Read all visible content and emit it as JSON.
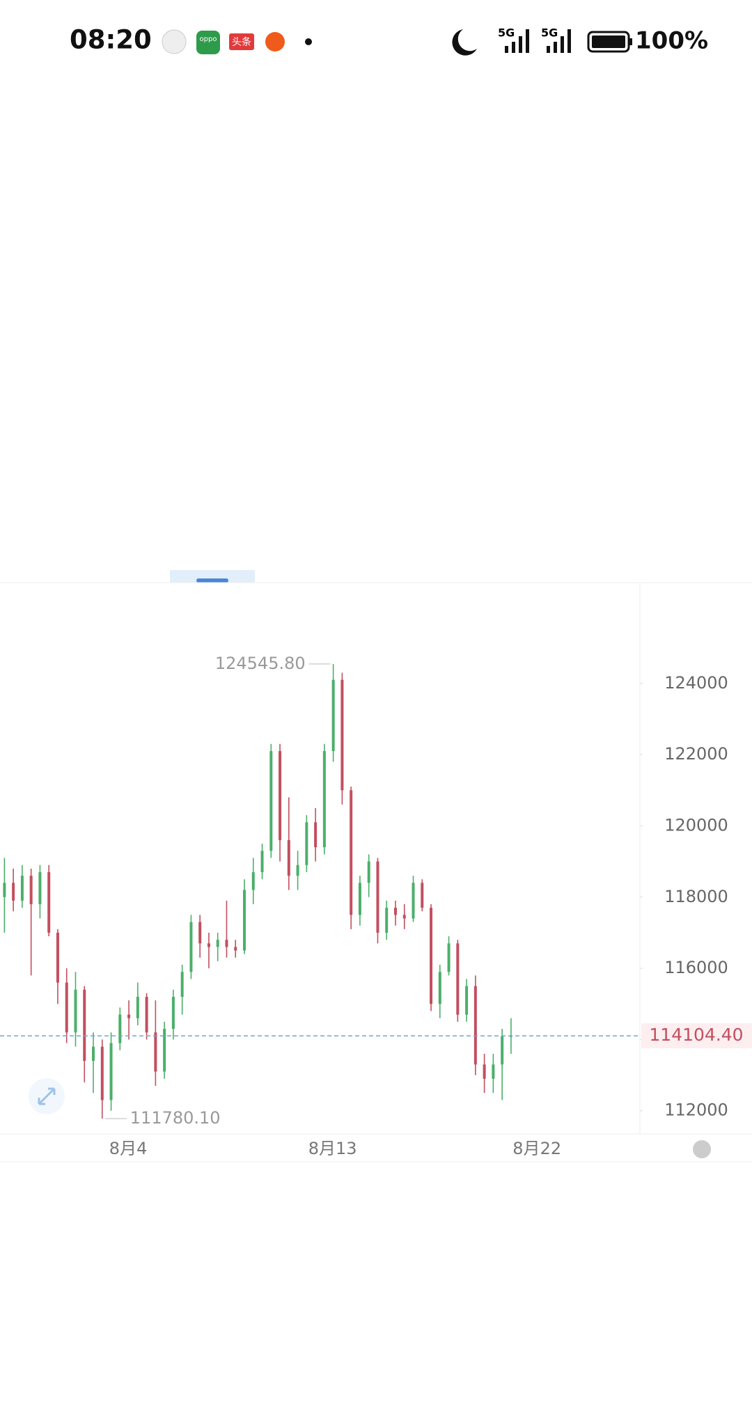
{
  "status_bar": {
    "time": "08:20",
    "icon_labels": [
      "oppo",
      "头条"
    ],
    "network": [
      "5G",
      "5G"
    ],
    "battery": "100%"
  },
  "chart_data": {
    "type": "ohlc",
    "categories": [
      null,
      null,
      null,
      null,
      null,
      null,
      null,
      null,
      null,
      null,
      null,
      null,
      null,
      null,
      "8月4",
      null,
      null,
      null,
      null,
      null,
      null,
      null,
      null,
      null,
      null,
      null,
      null,
      null,
      null,
      null,
      null,
      null,
      null,
      null,
      null,
      null,
      null,
      "8月13",
      null,
      null,
      null,
      null,
      null,
      null,
      null,
      null,
      null,
      null,
      null,
      null,
      null,
      null,
      null,
      null,
      null,
      null,
      null,
      null,
      null,
      null,
      "8月22",
      null,
      null,
      null,
      null,
      null,
      null,
      null,
      null,
      null,
      null,
      null
    ],
    "open": [
      118000,
      118400,
      117900,
      118600,
      117800,
      118700,
      117000,
      115600,
      114200,
      115400,
      113400,
      113800,
      112300,
      113900,
      114700,
      114600,
      115200,
      114200,
      113100,
      114300,
      115200,
      115900,
      117300,
      116700,
      116600,
      116800,
      116600,
      116500,
      118200,
      118700,
      119300,
      122100,
      119600,
      118600,
      118900,
      120100,
      119400,
      122100,
      124100,
      121000,
      117500,
      118400,
      119000,
      117000,
      117700,
      117500,
      117400,
      118400,
      117700,
      115000,
      115900,
      116700,
      114700,
      115500,
      113300,
      112900,
      113300,
      114100,
      null,
      null,
      null,
      null,
      null,
      null,
      null,
      null,
      null,
      null,
      null,
      null,
      null,
      null
    ],
    "high": [
      119100,
      118800,
      118900,
      118800,
      118900,
      118900,
      117100,
      116000,
      115900,
      115500,
      114200,
      114000,
      114200,
      114900,
      115100,
      115600,
      115300,
      115100,
      114500,
      115400,
      116100,
      117500,
      117500,
      117000,
      117000,
      117900,
      116800,
      118500,
      119100,
      119500,
      122300,
      122300,
      120800,
      119300,
      120300,
      120500,
      122300,
      124545.8,
      124300,
      121100,
      118600,
      119200,
      119100,
      117900,
      117900,
      117800,
      118600,
      118500,
      117800,
      116100,
      116900,
      116800,
      115700,
      115800,
      113600,
      113600,
      114300,
      114600,
      null,
      null,
      null,
      null,
      null,
      null,
      null,
      null,
      null,
      null,
      null,
      null,
      null,
      null
    ],
    "low": [
      117000,
      117600,
      117700,
      115800,
      117400,
      116900,
      115000,
      113900,
      113800,
      112800,
      112500,
      111780.1,
      112000,
      113700,
      114000,
      114400,
      114000,
      112700,
      112900,
      114000,
      114700,
      115700,
      116300,
      116000,
      116200,
      116300,
      116300,
      116400,
      117800,
      118500,
      119100,
      119000,
      118200,
      118200,
      118700,
      119000,
      119200,
      121800,
      120600,
      117100,
      117200,
      118000,
      116700,
      116800,
      117200,
      117100,
      117300,
      117600,
      114800,
      114600,
      115800,
      114500,
      114500,
      113000,
      112500,
      112500,
      112300,
      113600,
      null,
      null,
      null,
      null,
      null,
      null,
      null,
      null,
      null,
      null,
      null,
      null,
      null,
      null
    ],
    "close": [
      118400,
      117900,
      118600,
      117800,
      118700,
      117000,
      115600,
      114200,
      115400,
      113400,
      113800,
      112300,
      113900,
      114700,
      114600,
      115200,
      114200,
      113100,
      114300,
      115200,
      115900,
      117300,
      116700,
      116600,
      116800,
      116600,
      116500,
      118200,
      118700,
      119300,
      122100,
      119600,
      118600,
      118900,
      120100,
      119400,
      122100,
      124100,
      121000,
      117500,
      118400,
      119000,
      117000,
      117700,
      117500,
      117400,
      118400,
      117700,
      115000,
      115900,
      116700,
      114700,
      115500,
      113300,
      112900,
      113300,
      114100,
      114104.4,
      null,
      null,
      null,
      null,
      null,
      null,
      null,
      null,
      null,
      null,
      null,
      null,
      null,
      null
    ],
    "up_color": "#4caf6a",
    "down_color": "#c24f5f",
    "ylim": [
      111350,
      126830
    ],
    "yticks": [
      112000,
      114000,
      116000,
      118000,
      120000,
      122000,
      124000
    ],
    "annotations": [
      {
        "value": 124545.8,
        "label": "124545.80"
      },
      {
        "value": 111780.1,
        "label": "111780.10"
      }
    ],
    "last_price": {
      "value": 114104.4,
      "label": "114104.40",
      "color": "#c24f5f"
    }
  }
}
